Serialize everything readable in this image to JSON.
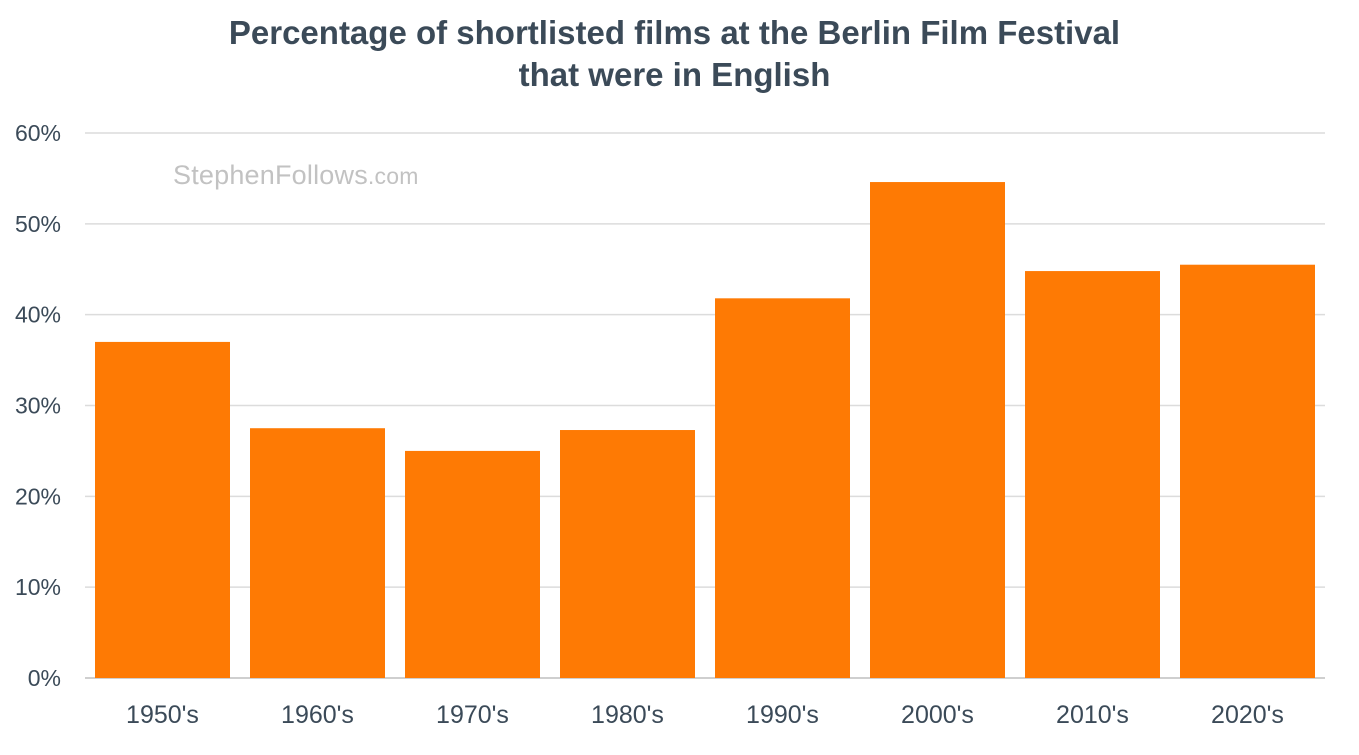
{
  "chart_data": {
    "type": "bar",
    "title_lines": [
      "Percentage of shortlisted films at the Berlin Film Festival",
      "that were in English"
    ],
    "categories": [
      "1950's",
      "1960's",
      "1970's",
      "1980's",
      "1990's",
      "2000's",
      "2010's",
      "2020's"
    ],
    "values": [
      37.0,
      27.5,
      25.0,
      27.3,
      41.8,
      54.6,
      44.8,
      45.5
    ],
    "y_ticks": [
      "0%",
      "10%",
      "20%",
      "30%",
      "40%",
      "50%",
      "60%"
    ],
    "ylim": [
      0,
      60
    ],
    "bar_color": "#fe7a04",
    "grid": true,
    "watermark": {
      "main": "StephenFollows",
      "suffix": ".com"
    }
  }
}
